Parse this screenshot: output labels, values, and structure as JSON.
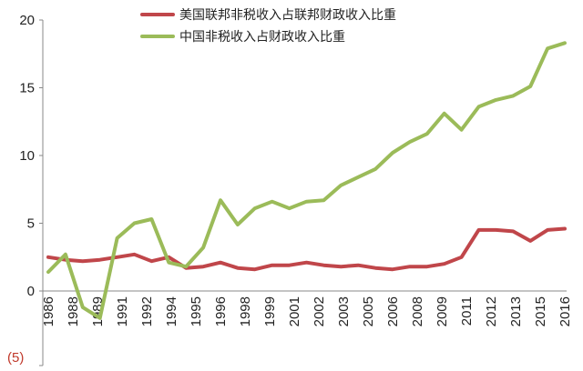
{
  "chart_data": {
    "type": "line",
    "x": [
      "1986",
      "1987",
      "1988",
      "1989",
      "1990",
      "1991",
      "1992",
      "1993",
      "1994",
      "1995",
      "1996",
      "1997",
      "1998",
      "1999",
      "2000",
      "2001",
      "2002",
      "2003",
      "2004",
      "2005",
      "2006",
      "2007",
      "2008",
      "2009",
      "2010",
      "2011",
      "2012",
      "2013",
      "2014",
      "2015",
      "2016"
    ],
    "x_tick_labels": [
      "1986",
      "1988",
      "1989",
      "1991",
      "1992",
      "1994",
      "1995",
      "1996",
      "1998",
      "1999",
      "2001",
      "2002",
      "2003",
      "2005",
      "2006",
      "2008",
      "2009",
      "2011",
      "2012",
      "2013",
      "2015",
      "2016"
    ],
    "y_ticks": [
      "20",
      "15",
      "10",
      "5",
      "0",
      "(5)"
    ],
    "ylim": [
      -5,
      20
    ],
    "grid": false,
    "legend_position": "top",
    "series": [
      {
        "name": "美国联邦非税收入占联邦财政收入比重",
        "color": "#c0464a",
        "values": [
          2.5,
          2.3,
          2.2,
          2.3,
          2.5,
          2.7,
          2.2,
          2.5,
          1.7,
          1.8,
          2.1,
          1.7,
          1.6,
          1.9,
          1.9,
          2.1,
          1.9,
          1.8,
          1.9,
          1.7,
          1.6,
          1.8,
          1.8,
          2.0,
          2.5,
          4.5,
          4.5,
          4.4,
          3.7,
          4.5,
          4.6
        ]
      },
      {
        "name": "中国非税收入占财政收入比重",
        "color": "#9bbb59",
        "values": [
          1.4,
          2.7,
          -1.2,
          -2.0,
          3.9,
          5.0,
          5.3,
          2.1,
          1.8,
          3.2,
          6.7,
          4.9,
          6.1,
          6.6,
          6.1,
          6.6,
          6.7,
          7.8,
          8.4,
          9.0,
          10.2,
          11.0,
          11.6,
          13.1,
          11.9,
          13.6,
          14.1,
          14.4,
          15.1,
          17.9,
          18.3
        ]
      }
    ]
  }
}
